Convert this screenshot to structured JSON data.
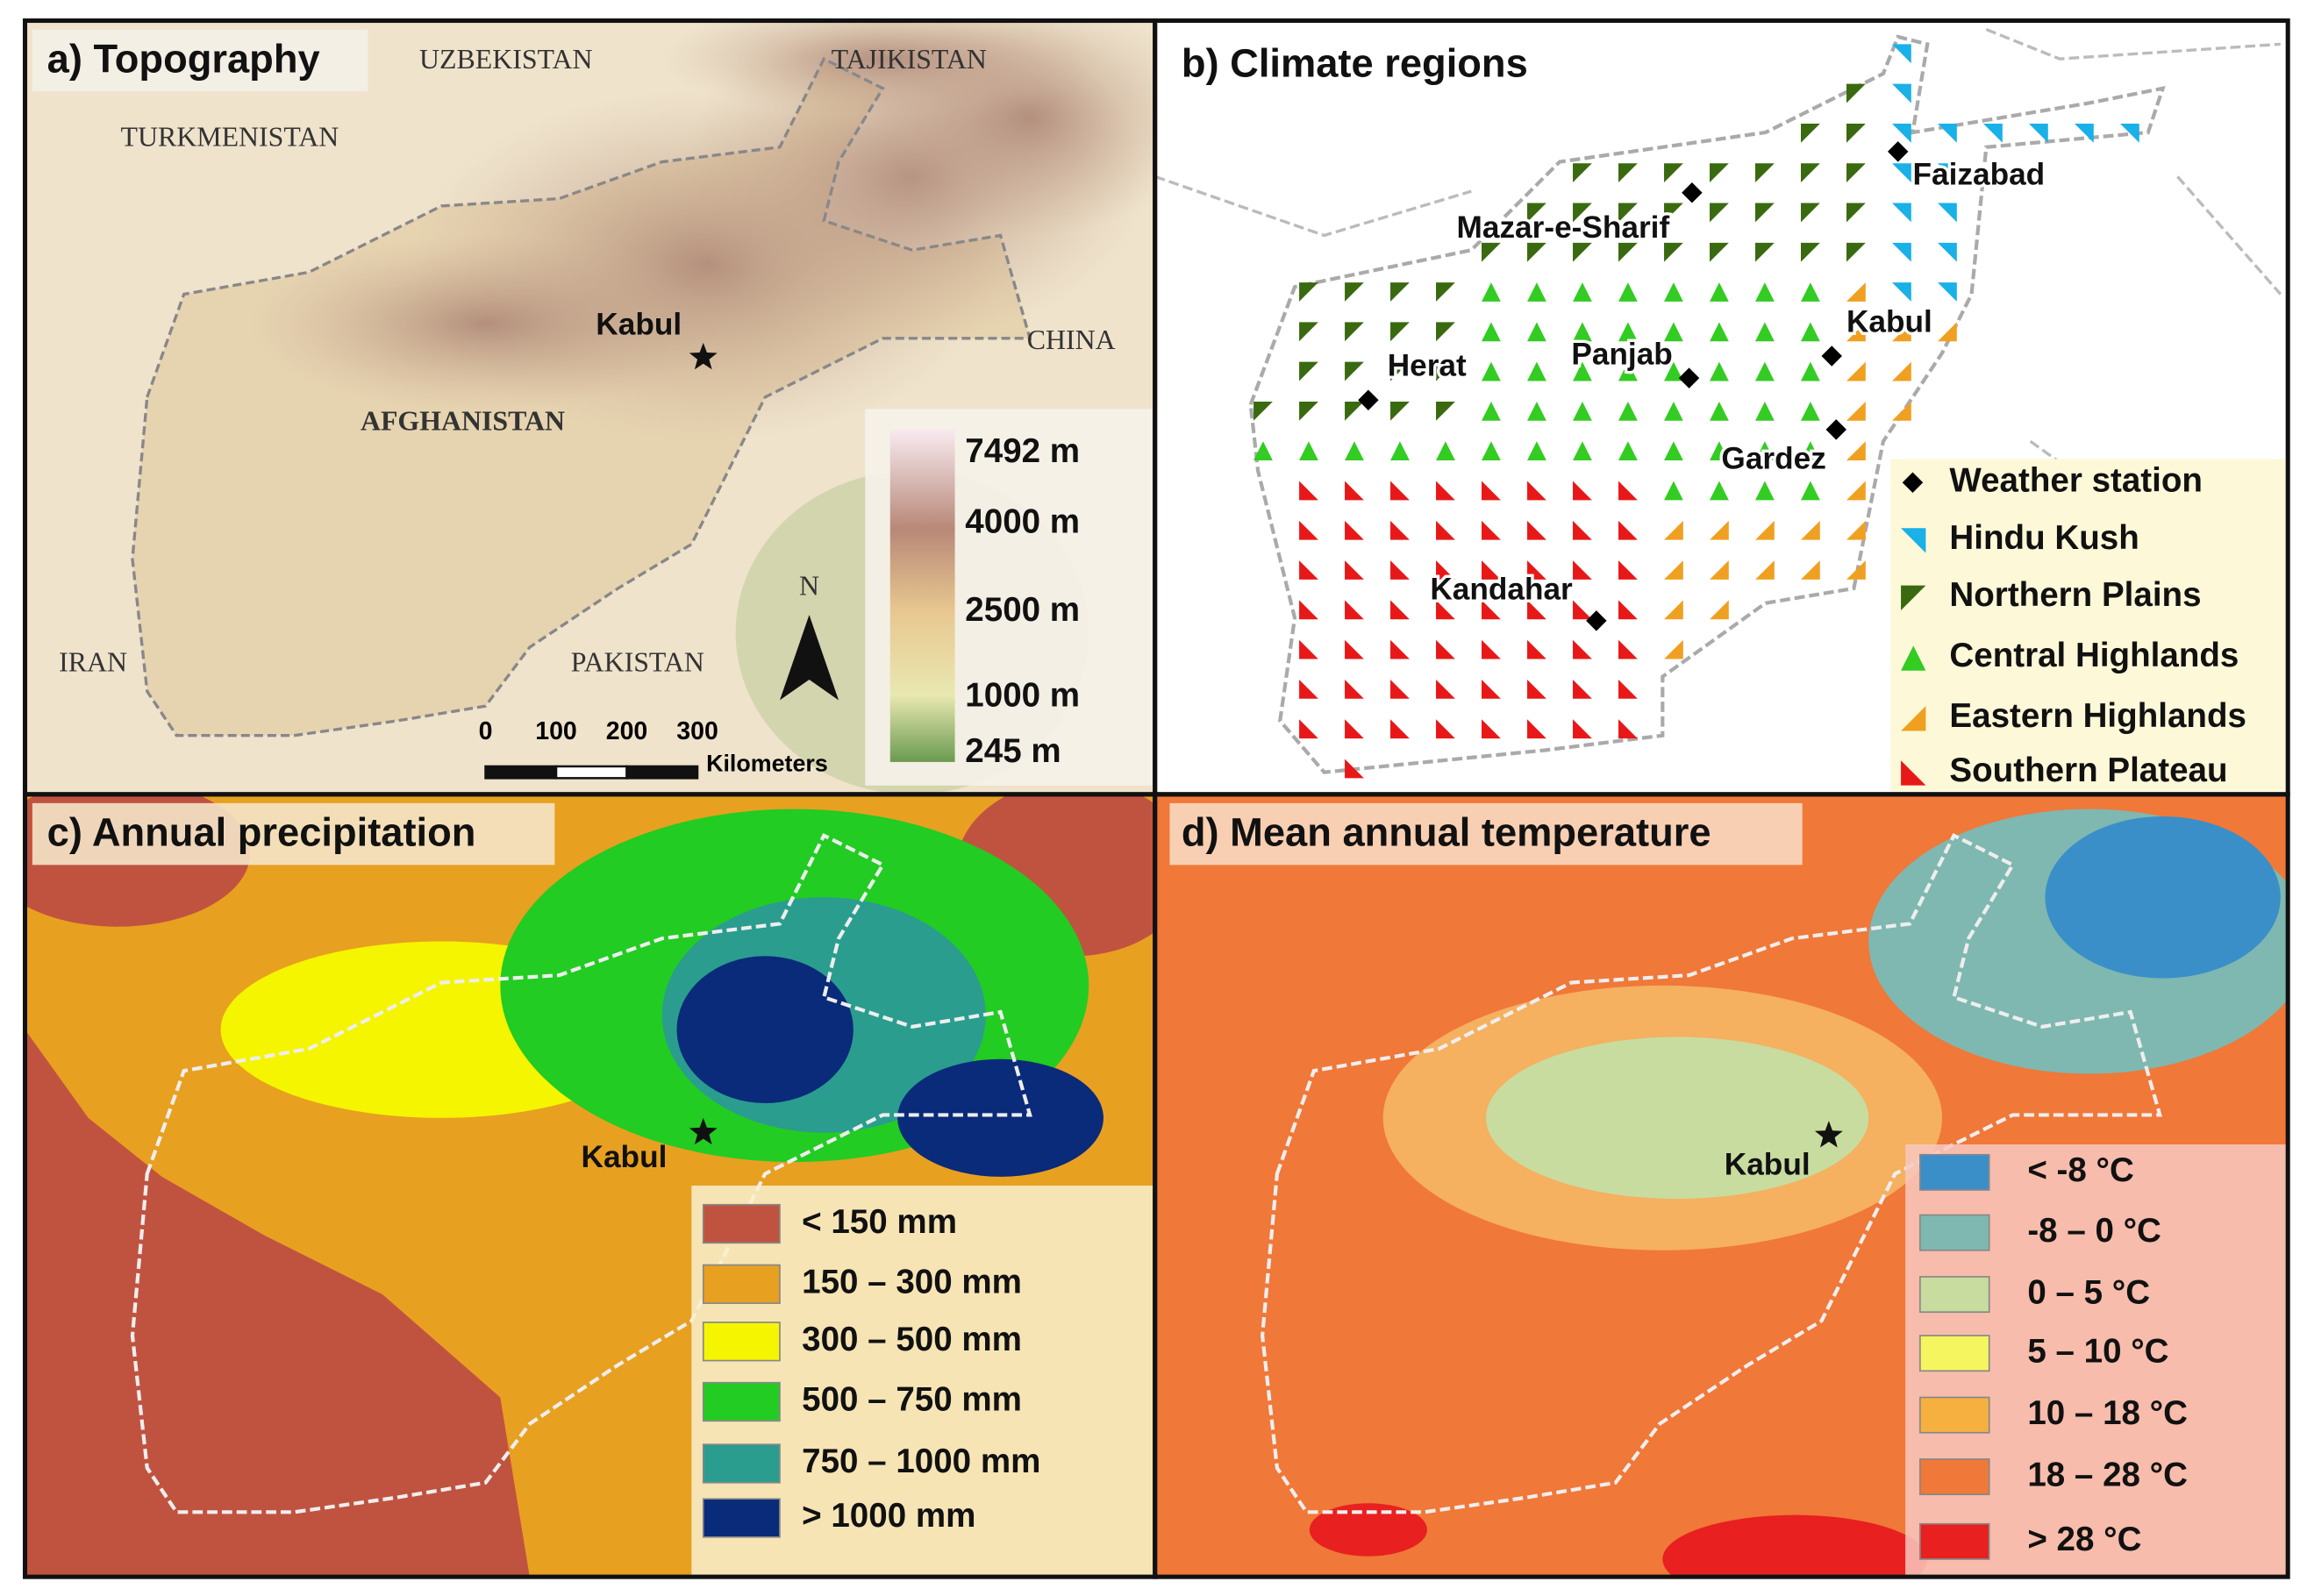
{
  "panels": [
    {
      "title": "a) Topography",
      "labels": [
        "UZBEKISTAN",
        "TAJIKISTAN",
        "TURKMENISTAN",
        "Kabul",
        "AFGHANISTAN",
        "CHINA",
        "IRAN",
        "PAKISTAN"
      ],
      "north": "N",
      "legend": [
        "7492 m",
        "4000 m",
        "2500 m",
        "1000 m",
        "245 m"
      ],
      "scale_bar": {
        "ticks": [
          "0",
          "100",
          "200",
          "300"
        ],
        "unit": "Kilometers"
      }
    },
    {
      "title": "b) Climate regions",
      "stations": [
        "Faizabad",
        "Mazar-e-Sharif",
        "Herat",
        "Panjab",
        "Kabul",
        "Gardez",
        "Kandahar"
      ],
      "legend": [
        "Weather station",
        "Hindu Kush",
        "Northern Plains",
        "Central Highlands",
        "Eastern Highlands",
        "Southern Plateau"
      ]
    },
    {
      "title": "c) Annual precipitation",
      "labels": [
        "Kabul"
      ],
      "legend": [
        "< 150 mm",
        "150 – 300 mm",
        "300 – 500 mm",
        "500 – 750 mm",
        "750 – 1000 mm",
        "> 1000 mm"
      ]
    },
    {
      "title": "d) Mean annual temperature",
      "labels": [
        "Kabul"
      ],
      "legend": [
        "< -8 °C",
        "-8 – 0 °C",
        "0 – 5 °C",
        "5 – 10 °C",
        "10 – 18 °C",
        "18 – 28 °C",
        "> 28 °C"
      ]
    }
  ]
}
